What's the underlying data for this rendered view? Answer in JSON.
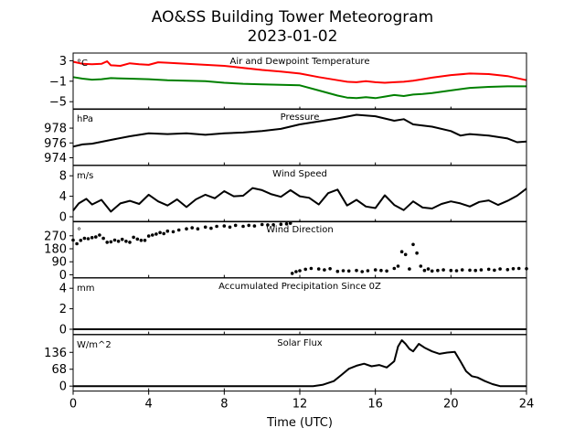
{
  "figure": {
    "title": "AO&SS Building Tower Meteorogram",
    "date": "2023-01-02"
  },
  "chart_data": [
    {
      "type": "line",
      "title": "Air and Dewpoint Temperature",
      "ylabel": "°C",
      "ylim": [
        -6.5,
        4.5
      ],
      "yticks": [
        3,
        -1,
        -5
      ],
      "colors": {
        "air": "#ff0000",
        "dewpoint": "#008000"
      },
      "series": [
        {
          "key": "air",
          "x": [
            0,
            0.5,
            1,
            1.5,
            1.8,
            2,
            2.5,
            3,
            3.5,
            4,
            4.5,
            5,
            6,
            7,
            8,
            9,
            10,
            11,
            12,
            13,
            14,
            14.5,
            15,
            15.5,
            16,
            16.5,
            17,
            17.5,
            18,
            18.5,
            19,
            20,
            21,
            22,
            23,
            24
          ],
          "y": [
            2.8,
            2.4,
            2.3,
            2.4,
            2.9,
            2.1,
            2.0,
            2.5,
            2.3,
            2.2,
            2.7,
            2.6,
            2.4,
            2.2,
            2.0,
            1.6,
            1.2,
            0.9,
            0.5,
            -0.2,
            -0.8,
            -1.1,
            -1.2,
            -1.0,
            -1.2,
            -1.3,
            -1.2,
            -1.1,
            -0.9,
            -0.6,
            -0.3,
            0.2,
            0.5,
            0.4,
            0.0,
            -0.8
          ]
        },
        {
          "key": "dewpoint",
          "x": [
            0,
            0.5,
            1,
            1.5,
            2,
            3,
            4,
            5,
            6,
            7,
            8,
            9,
            10,
            11,
            12,
            13,
            14,
            14.5,
            15,
            15.5,
            16,
            16.5,
            17,
            17.5,
            18,
            18.5,
            19,
            20,
            21,
            22,
            23,
            24
          ],
          "y": [
            -0.2,
            -0.5,
            -0.7,
            -0.6,
            -0.4,
            -0.5,
            -0.6,
            -0.8,
            -0.9,
            -1.0,
            -1.3,
            -1.5,
            -1.6,
            -1.7,
            -1.8,
            -2.8,
            -3.8,
            -4.2,
            -4.3,
            -4.1,
            -4.3,
            -4.0,
            -3.7,
            -3.9,
            -3.6,
            -3.5,
            -3.3,
            -2.8,
            -2.3,
            -2.1,
            -2.0,
            -2.0
          ]
        }
      ]
    },
    {
      "type": "line",
      "title": "Pressure",
      "ylabel": "hPa",
      "ylim": [
        973.0,
        980.6
      ],
      "yticks": [
        978,
        976,
        974
      ],
      "colors": {
        "line": "#000000"
      },
      "series": [
        {
          "key": "pressure",
          "x": [
            0,
            0.5,
            1,
            2,
            3,
            4,
            5,
            6,
            7,
            8,
            9,
            10,
            11,
            12,
            13,
            14,
            15,
            16,
            17,
            17.5,
            18,
            19,
            20,
            20.5,
            21,
            22,
            23,
            23.5,
            24
          ],
          "y": [
            975.5,
            975.8,
            975.9,
            976.4,
            976.9,
            977.3,
            977.2,
            977.3,
            977.1,
            977.3,
            977.4,
            977.6,
            977.9,
            978.5,
            978.9,
            979.3,
            979.8,
            979.6,
            979.0,
            979.2,
            978.5,
            978.2,
            977.6,
            977.0,
            977.2,
            977.0,
            976.6,
            976.1,
            976.2
          ]
        }
      ]
    },
    {
      "type": "line",
      "title": "Wind Speed",
      "ylabel": "m/s",
      "ylim": [
        -1.0,
        10.0
      ],
      "yticks": [
        8,
        4,
        0
      ],
      "colors": {
        "line": "#000000"
      },
      "series": [
        {
          "key": "wind_speed",
          "x": [
            0,
            0.3,
            0.7,
            1,
            1.5,
            2,
            2.5,
            3,
            3.5,
            4,
            4.5,
            5,
            5.5,
            6,
            6.5,
            7,
            7.5,
            8,
            8.5,
            9,
            9.5,
            10,
            10.5,
            11,
            11.5,
            12,
            12.5,
            13,
            13.5,
            14,
            14.5,
            15,
            15.5,
            16,
            16.5,
            17,
            17.5,
            18,
            18.5,
            19,
            19.5,
            20,
            20.5,
            21,
            21.5,
            22,
            22.5,
            23,
            23.5,
            24
          ],
          "y": [
            1.2,
            2.6,
            3.5,
            2.4,
            3.3,
            1.0,
            2.6,
            3.1,
            2.5,
            4.3,
            3.0,
            2.2,
            3.4,
            1.9,
            3.4,
            4.3,
            3.6,
            5.0,
            4.0,
            4.1,
            5.6,
            5.2,
            4.4,
            3.9,
            5.2,
            4.0,
            3.7,
            2.4,
            4.6,
            5.3,
            2.2,
            3.3,
            2.0,
            1.7,
            4.2,
            2.3,
            1.3,
            3.0,
            1.8,
            1.6,
            2.5,
            3.0,
            2.6,
            2.0,
            2.9,
            3.2,
            2.3,
            3.1,
            4.1,
            5.5
          ]
        }
      ]
    },
    {
      "type": "scatter",
      "title": "Wind Direction",
      "ylabel": "°",
      "ylim": [
        -20,
        370
      ],
      "yticks": [
        270,
        180,
        90,
        0
      ],
      "colors": {
        "points": "#000000"
      },
      "series": [
        {
          "key": "wind_direction",
          "x": [
            0,
            0.2,
            0.4,
            0.6,
            0.8,
            1,
            1.2,
            1.4,
            1.6,
            1.8,
            2,
            2.2,
            2.4,
            2.6,
            2.8,
            3,
            3.2,
            3.4,
            3.6,
            3.8,
            4,
            4.2,
            4.4,
            4.6,
            4.8,
            5,
            5.3,
            5.6,
            6,
            6.3,
            6.6,
            7,
            7.3,
            7.6,
            8,
            8.3,
            8.6,
            9,
            9.3,
            9.6,
            10,
            10.3,
            10.6,
            11,
            11.3,
            11.5,
            11.6,
            11.8,
            12,
            12.3,
            12.6,
            13,
            13.3,
            13.6,
            14,
            14.3,
            14.6,
            15,
            15.3,
            15.6,
            16,
            16.3,
            16.6,
            17,
            17.2,
            17.4,
            17.6,
            17.8,
            18,
            18.2,
            18.4,
            18.6,
            18.8,
            19,
            19.3,
            19.6,
            20,
            20.3,
            20.6,
            21,
            21.3,
            21.6,
            22,
            22.3,
            22.6,
            23,
            23.3,
            23.6,
            24
          ],
          "y": [
            240,
            215,
            238,
            252,
            250,
            257,
            262,
            275,
            252,
            225,
            228,
            240,
            232,
            245,
            232,
            225,
            260,
            247,
            238,
            238,
            268,
            275,
            282,
            292,
            285,
            302,
            298,
            310,
            318,
            325,
            318,
            330,
            322,
            335,
            338,
            330,
            342,
            335,
            342,
            338,
            348,
            345,
            346,
            350,
            352,
            357,
            10,
            22,
            28,
            38,
            44,
            40,
            34,
            42,
            24,
            28,
            26,
            30,
            22,
            28,
            34,
            30,
            26,
            44,
            60,
            160,
            140,
            40,
            210,
            150,
            60,
            30,
            40,
            26,
            30,
            34,
            30,
            28,
            34,
            32,
            30,
            34,
            38,
            32,
            40,
            36,
            42,
            44,
            42
          ]
        }
      ]
    },
    {
      "type": "line",
      "title": "Accumulated Precipitation Since 0Z",
      "ylabel": "mm",
      "ylim": [
        -0.5,
        5.0
      ],
      "yticks": [
        4,
        2,
        0
      ],
      "colors": {
        "line": "#000000"
      },
      "series": [
        {
          "key": "precip",
          "x": [
            0,
            24
          ],
          "y": [
            0,
            0
          ]
        }
      ]
    },
    {
      "type": "line",
      "title": "Solar Flux",
      "ylabel": "W/m^2",
      "ylim": [
        -20,
        207
      ],
      "yticks": [
        136,
        68,
        0
      ],
      "colors": {
        "line": "#000000"
      },
      "series": [
        {
          "key": "solar",
          "x": [
            0,
            12.7,
            13.2,
            13.8,
            14.2,
            14.6,
            15,
            15.4,
            15.8,
            16.2,
            16.6,
            17,
            17.2,
            17.4,
            17.6,
            17.8,
            18,
            18.3,
            18.6,
            19,
            19.4,
            19.8,
            20.2,
            20.5,
            20.8,
            21.1,
            21.4,
            21.8,
            22.2,
            22.6,
            23,
            24
          ],
          "y": [
            0,
            0,
            5,
            20,
            45,
            70,
            82,
            90,
            80,
            85,
            75,
            100,
            160,
            185,
            170,
            150,
            140,
            170,
            155,
            140,
            130,
            135,
            138,
            100,
            60,
            40,
            35,
            20,
            8,
            0,
            0,
            0
          ]
        }
      ]
    }
  ],
  "x_axis": {
    "label": "Time (UTC)",
    "ticks": [
      "0",
      "4",
      "8",
      "12",
      "16",
      "20",
      "24"
    ],
    "range": [
      0,
      24
    ]
  }
}
